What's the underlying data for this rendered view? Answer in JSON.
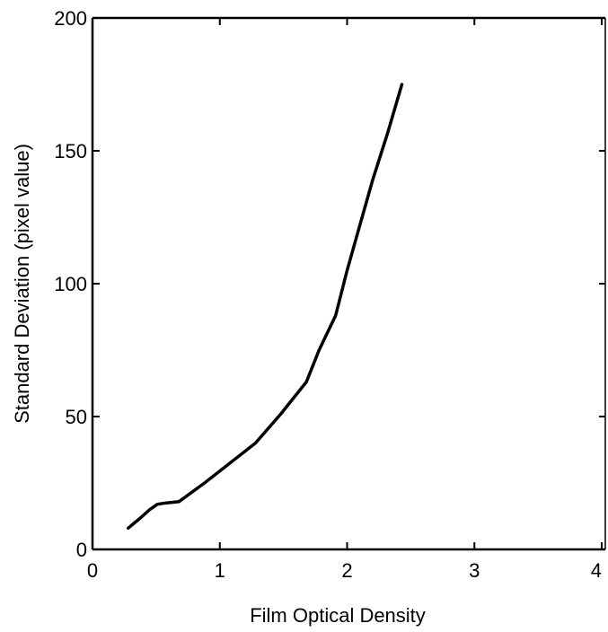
{
  "chart_data": {
    "type": "line",
    "xlabel": "Film Optical Density",
    "ylabel": "Standard Deviation (pixel value)",
    "xlim": [
      0,
      4
    ],
    "ylim": [
      0,
      200
    ],
    "xticks": [
      "0",
      "1",
      "2",
      "3",
      "4"
    ],
    "yticks": [
      "0",
      "50",
      "100",
      "150",
      "200"
    ],
    "grid": false,
    "legend": "none",
    "line_color": "#000000",
    "series": [
      {
        "x": [
          0.28,
          0.33,
          0.38,
          0.45,
          0.51,
          0.58,
          0.68,
          0.88,
          1.08,
          1.28,
          1.48,
          1.68,
          1.78,
          1.91,
          2.0,
          2.1,
          2.2,
          2.32,
          2.43
        ],
        "y": [
          8,
          10,
          12,
          15,
          17,
          17.5,
          18,
          25,
          32.5,
          40,
          51,
          63,
          75,
          88,
          105,
          122,
          139,
          157,
          175
        ]
      }
    ]
  }
}
